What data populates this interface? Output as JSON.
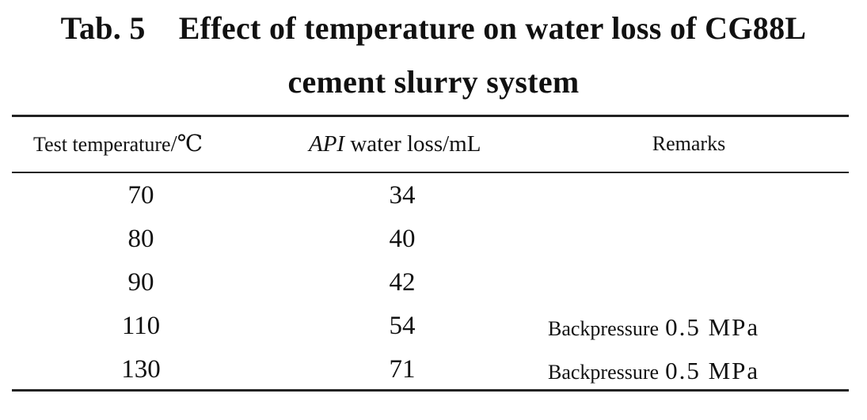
{
  "caption": {
    "label": "Tab. 5",
    "title_line1": "Effect of temperature on water loss of CG88L",
    "title_line2": "cement slurry system"
  },
  "table": {
    "headers": {
      "temperature": "Test temperature",
      "temperature_unit": "/℃",
      "api_italic": "API",
      "api_rest": " water loss",
      "api_unit": "/mL",
      "remarks": "Remarks"
    },
    "rows": [
      {
        "temperature": "70",
        "api_water_loss": "34",
        "remark_text": "",
        "remark_value": ""
      },
      {
        "temperature": "80",
        "api_water_loss": "40",
        "remark_text": "",
        "remark_value": ""
      },
      {
        "temperature": "90",
        "api_water_loss": "42",
        "remark_text": "",
        "remark_value": ""
      },
      {
        "temperature": "110",
        "api_water_loss": "54",
        "remark_text": "Backpressure",
        "remark_value": "0.5 MPa"
      },
      {
        "temperature": "130",
        "api_water_loss": "71",
        "remark_text": "Backpressure",
        "remark_value": "0.5 MPa"
      }
    ]
  }
}
